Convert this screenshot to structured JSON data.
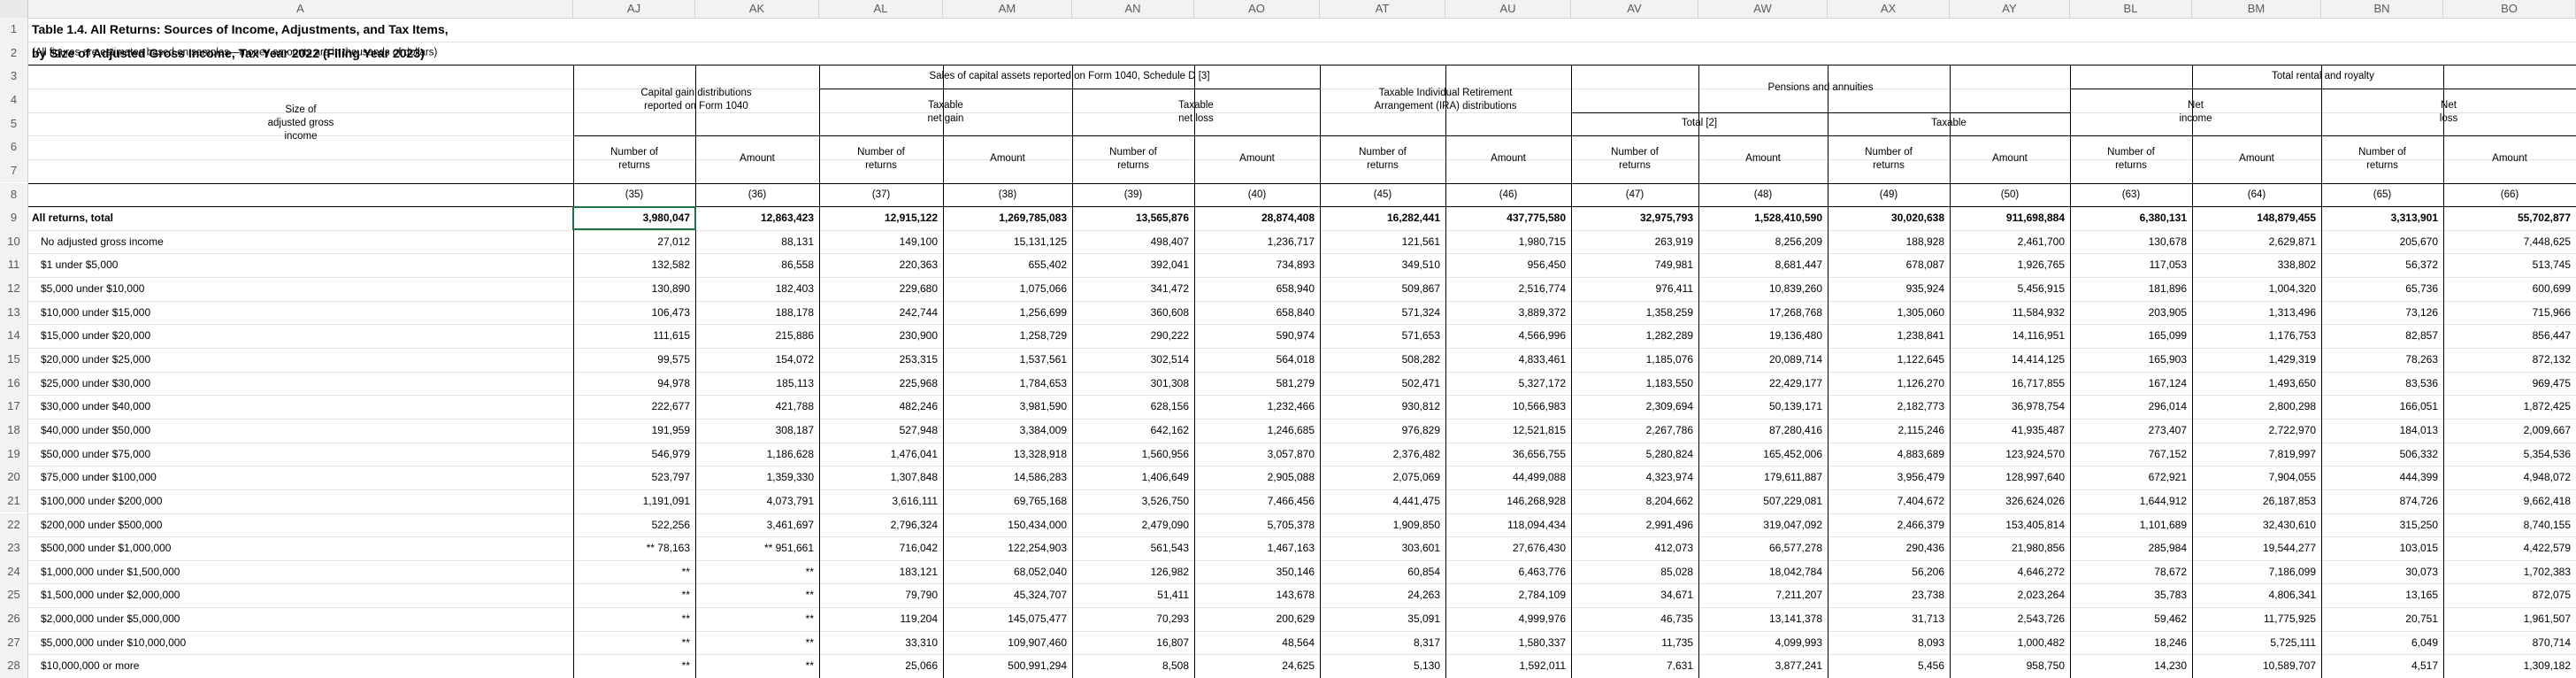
{
  "columns": [
    "A",
    "AJ",
    "AK",
    "AL",
    "AM",
    "AN",
    "AO",
    "AT",
    "AU",
    "AV",
    "AW",
    "AX",
    "AY",
    "BL",
    "BM",
    "BN",
    "BO"
  ],
  "row_numbers": [
    "1",
    "2",
    "3",
    "4",
    "5",
    "6",
    "7",
    "8",
    "9",
    "10",
    "11",
    "12",
    "13",
    "14",
    "15",
    "16",
    "17",
    "18",
    "19",
    "20",
    "21",
    "22",
    "23",
    "24",
    "25",
    "26",
    "27",
    "28"
  ],
  "title_line1": "Table 1.4.  All Returns: Sources of Income, Adjustments, and Tax Items,",
  "title_line2": "by Size of Adjusted Gross Income, Tax Year 2022 (Filing Year 2023)",
  "subtitle": "(All figures are estimates based on samples—money amounts are in thousands of dollars)",
  "headers": {
    "size_of_agi": "Size of\nadjusted gross\nincome",
    "capital_gain_dist": "Capital gain distributions\nreported on Form 1040",
    "sales_capital_assets": "Sales of capital assets reported on Form 1040, Schedule D [3]",
    "taxable_net_gain": "Taxable\nnet gain",
    "taxable_net_loss": "Taxable\nnet loss",
    "ira_distributions": "Taxable Individual Retirement\nArrangement (IRA) distributions",
    "pensions_annuities": "Pensions and annuities",
    "total_2": "Total [2]",
    "taxable": "Taxable",
    "total_rental_royalty": "Total rental and royalty",
    "net_income": "Net\nincome",
    "net_loss": "Net\nloss",
    "number_of_returns": "Number of\nreturns",
    "amount": "Amount"
  },
  "col_numbers": [
    "(35)",
    "(36)",
    "(37)",
    "(38)",
    "(39)",
    "(40)",
    "(45)",
    "(46)",
    "(47)",
    "(48)",
    "(49)",
    "(50)",
    "(63)",
    "(64)",
    "(65)",
    "(66)"
  ],
  "rows": [
    {
      "label": "All returns, total",
      "bold": true,
      "v": [
        "3,980,047",
        "12,863,423",
        "12,915,122",
        "1,269,785,083",
        "13,565,876",
        "28,874,408",
        "16,282,441",
        "437,775,580",
        "32,975,793",
        "1,528,410,590",
        "30,020,638",
        "911,698,884",
        "6,380,131",
        "148,879,455",
        "3,313,901",
        "55,702,877"
      ]
    },
    {
      "label": "No adjusted gross income",
      "v": [
        "27,012",
        "88,131",
        "149,100",
        "15,131,125",
        "498,407",
        "1,236,717",
        "121,561",
        "1,980,715",
        "263,919",
        "8,256,209",
        "188,928",
        "2,461,700",
        "130,678",
        "2,629,871",
        "205,670",
        "7,448,625"
      ]
    },
    {
      "label": "$1 under $5,000",
      "v": [
        "132,582",
        "86,558",
        "220,363",
        "655,402",
        "392,041",
        "734,893",
        "349,510",
        "956,450",
        "749,981",
        "8,681,447",
        "678,087",
        "1,926,765",
        "117,053",
        "338,802",
        "56,372",
        "513,745"
      ]
    },
    {
      "label": "$5,000 under $10,000",
      "v": [
        "130,890",
        "182,403",
        "229,680",
        "1,075,066",
        "341,472",
        "658,940",
        "509,867",
        "2,516,774",
        "976,411",
        "10,839,260",
        "935,924",
        "5,456,915",
        "181,896",
        "1,004,320",
        "65,736",
        "600,699"
      ]
    },
    {
      "label": "$10,000 under $15,000",
      "v": [
        "106,473",
        "188,178",
        "242,744",
        "1,256,699",
        "360,608",
        "658,840",
        "571,324",
        "3,889,372",
        "1,358,259",
        "17,268,768",
        "1,305,060",
        "11,584,932",
        "203,905",
        "1,313,496",
        "73,126",
        "715,966"
      ]
    },
    {
      "label": "$15,000 under $20,000",
      "v": [
        "111,615",
        "215,886",
        "230,900",
        "1,258,729",
        "290,222",
        "590,974",
        "571,653",
        "4,566,996",
        "1,282,289",
        "19,136,480",
        "1,238,841",
        "14,116,951",
        "165,099",
        "1,176,753",
        "82,857",
        "856,447"
      ]
    },
    {
      "label": "$20,000 under $25,000",
      "v": [
        "99,575",
        "154,072",
        "253,315",
        "1,537,561",
        "302,514",
        "564,018",
        "508,282",
        "4,833,461",
        "1,185,076",
        "20,089,714",
        "1,122,645",
        "14,414,125",
        "165,903",
        "1,429,319",
        "78,263",
        "872,132"
      ]
    },
    {
      "label": "$25,000 under $30,000",
      "v": [
        "94,978",
        "185,113",
        "225,968",
        "1,784,653",
        "301,308",
        "581,279",
        "502,471",
        "5,327,172",
        "1,183,550",
        "22,429,177",
        "1,126,270",
        "16,717,855",
        "167,124",
        "1,493,650",
        "83,536",
        "969,475"
      ]
    },
    {
      "label": "$30,000 under $40,000",
      "v": [
        "222,677",
        "421,788",
        "482,246",
        "3,981,590",
        "628,156",
        "1,232,466",
        "930,812",
        "10,566,983",
        "2,309,694",
        "50,139,171",
        "2,182,773",
        "36,978,754",
        "296,014",
        "2,800,298",
        "166,051",
        "1,872,425"
      ]
    },
    {
      "label": "$40,000 under $50,000",
      "v": [
        "191,959",
        "308,187",
        "527,948",
        "3,384,009",
        "642,162",
        "1,246,685",
        "976,829",
        "12,521,815",
        "2,267,786",
        "87,280,416",
        "2,115,246",
        "41,935,487",
        "273,407",
        "2,722,970",
        "184,013",
        "2,009,667"
      ]
    },
    {
      "label": "$50,000 under $75,000",
      "v": [
        "546,979",
        "1,186,628",
        "1,476,041",
        "13,328,918",
        "1,560,956",
        "3,057,870",
        "2,376,482",
        "36,656,755",
        "5,280,824",
        "165,452,006",
        "4,883,689",
        "123,924,570",
        "767,152",
        "7,819,997",
        "506,332",
        "5,354,536"
      ]
    },
    {
      "label": "$75,000 under $100,000",
      "v": [
        "523,797",
        "1,359,330",
        "1,307,848",
        "14,586,283",
        "1,406,649",
        "2,905,088",
        "2,075,069",
        "44,499,088",
        "4,323,974",
        "179,611,887",
        "3,956,479",
        "128,997,640",
        "672,921",
        "7,904,055",
        "444,399",
        "4,948,072"
      ]
    },
    {
      "label": "$100,000 under $200,000",
      "v": [
        "1,191,091",
        "4,073,791",
        "3,616,111",
        "69,765,168",
        "3,526,750",
        "7,466,456",
        "4,441,475",
        "146,268,928",
        "8,204,662",
        "507,229,081",
        "7,404,672",
        "326,624,026",
        "1,644,912",
        "26,187,853",
        "874,726",
        "9,662,418"
      ]
    },
    {
      "label": "$200,000 under $500,000",
      "v": [
        "522,256",
        "3,461,697",
        "2,796,324",
        "150,434,000",
        "2,479,090",
        "5,705,378",
        "1,909,850",
        "118,094,434",
        "2,991,496",
        "319,047,092",
        "2,466,379",
        "153,405,814",
        "1,101,689",
        "32,430,610",
        "315,250",
        "8,740,155"
      ]
    },
    {
      "label": "$500,000 under $1,000,000",
      "v": [
        "** 78,163",
        "** 951,661",
        "716,042",
        "122,254,903",
        "561,543",
        "1,467,163",
        "303,601",
        "27,676,430",
        "412,073",
        "66,577,278",
        "290,436",
        "21,980,856",
        "285,984",
        "19,544,277",
        "103,015",
        "4,422,579"
      ]
    },
    {
      "label": "$1,000,000 under $1,500,000",
      "v": [
        "**",
        "**",
        "183,121",
        "68,052,040",
        "126,982",
        "350,146",
        "60,854",
        "6,463,776",
        "85,028",
        "18,042,784",
        "56,206",
        "4,646,272",
        "78,672",
        "7,186,099",
        "30,073",
        "1,702,383"
      ]
    },
    {
      "label": "$1,500,000 under $2,000,000",
      "v": [
        "**",
        "**",
        "79,790",
        "45,324,707",
        "51,411",
        "143,678",
        "24,263",
        "2,784,109",
        "34,671",
        "7,211,207",
        "23,738",
        "2,023,264",
        "35,783",
        "4,806,341",
        "13,165",
        "872,075"
      ]
    },
    {
      "label": "$2,000,000 under $5,000,000",
      "v": [
        "**",
        "**",
        "119,204",
        "145,075,477",
        "70,293",
        "200,629",
        "35,091",
        "4,999,976",
        "46,735",
        "13,141,378",
        "31,713",
        "2,543,726",
        "59,462",
        "11,775,925",
        "20,751",
        "1,961,507"
      ]
    },
    {
      "label": "$5,000,000 under $10,000,000",
      "v": [
        "**",
        "**",
        "33,310",
        "109,907,460",
        "16,807",
        "48,564",
        "8,317",
        "1,580,337",
        "11,735",
        "4,099,993",
        "8,093",
        "1,000,482",
        "18,246",
        "5,725,111",
        "6,049",
        "870,714"
      ]
    },
    {
      "label": "$10,000,000 or more",
      "v": [
        "**",
        "**",
        "25,066",
        "500,991,294",
        "8,508",
        "24,625",
        "5,130",
        "1,592,011",
        "7,631",
        "3,877,241",
        "5,456",
        "958,750",
        "14,230",
        "10,589,707",
        "4,517",
        "1,309,182"
      ]
    }
  ]
}
